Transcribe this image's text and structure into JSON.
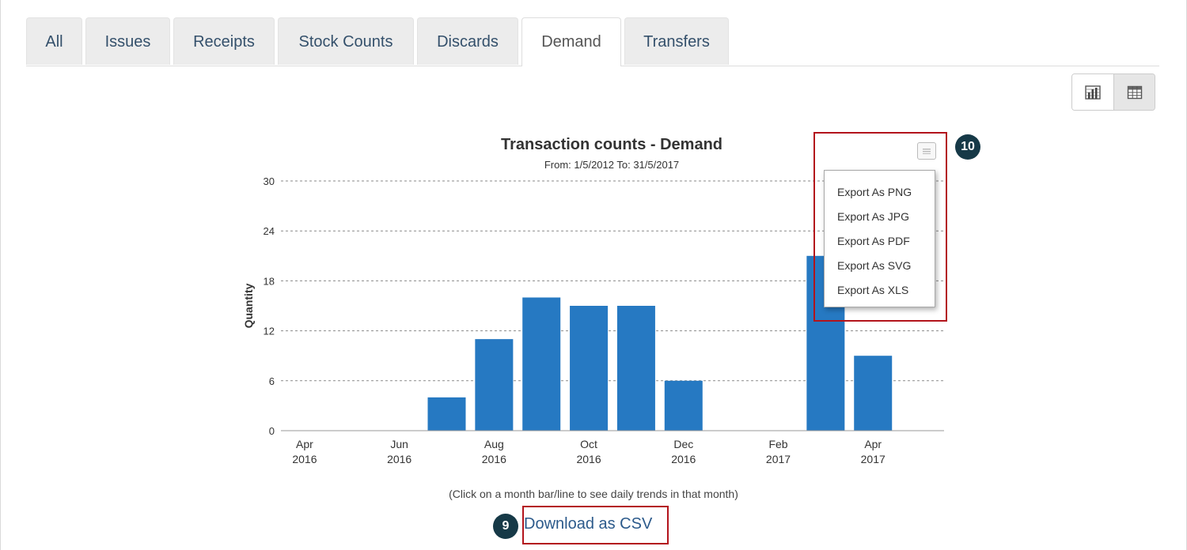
{
  "tabs": [
    {
      "label": "All"
    },
    {
      "label": "Issues"
    },
    {
      "label": "Receipts"
    },
    {
      "label": "Stock Counts"
    },
    {
      "label": "Discards"
    },
    {
      "label": "Demand",
      "active": true
    },
    {
      "label": "Transfers"
    }
  ],
  "view_toggle": {
    "selected": "chart",
    "options": [
      "chart-icon",
      "table-icon"
    ]
  },
  "chart": {
    "title": "Transaction counts - Demand",
    "subtitle": "From: 1/5/2012 To: 31/5/2017",
    "hint": "(Click on a month bar/line to see daily trends in that month)",
    "menu_items": [
      "Export As PNG",
      "Export As JPG",
      "Export As PDF",
      "Export As SVG",
      "Export As XLS"
    ]
  },
  "chart_data": {
    "type": "bar",
    "title": "Transaction counts - Demand",
    "subtitle": "From: 1/5/2012 To: 31/5/2017",
    "ylabel": "Quantity",
    "xlabel": "",
    "ylim": [
      0,
      30
    ],
    "yticks": [
      0,
      6,
      12,
      18,
      24,
      30
    ],
    "categories": [
      "Apr 2016",
      "May 2016",
      "Jun 2016",
      "Jul 2016",
      "Aug 2016",
      "Sep 2016",
      "Oct 2016",
      "Nov 2016",
      "Dec 2016",
      "Jan 2017",
      "Feb 2017",
      "Mar 2017",
      "Apr 2017",
      "May 2017"
    ],
    "values": [
      0,
      0,
      0,
      4,
      11,
      16,
      15,
      15,
      6,
      0,
      0,
      21,
      9,
      null
    ],
    "tick_labels": [
      {
        "month": "Apr",
        "year": "2016"
      },
      {
        "month": "Jun",
        "year": "2016"
      },
      {
        "month": "Aug",
        "year": "2016"
      },
      {
        "month": "Oct",
        "year": "2016"
      },
      {
        "month": "Dec",
        "year": "2016"
      },
      {
        "month": "Feb",
        "year": "2017"
      },
      {
        "month": "Apr",
        "year": "2017"
      }
    ],
    "grid": true,
    "color": "#2679c2"
  },
  "annotations": [
    {
      "label": "10"
    },
    {
      "label": "9"
    }
  ],
  "download": {
    "label": "Download as CSV"
  }
}
